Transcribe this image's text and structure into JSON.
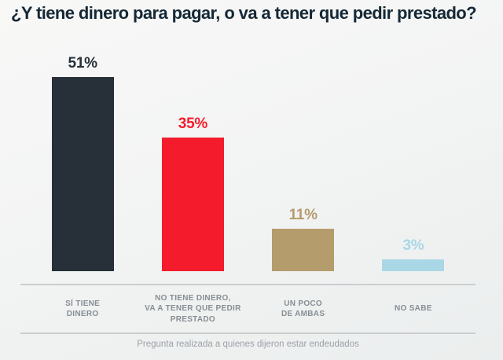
{
  "title": "¿Y tiene dinero para pagar, o va a tener que pedir prestado?",
  "footnote": "Pregunta realizada a quienes dijeron estar endeudados",
  "colors": {
    "title_text": "#152836",
    "category_label_text": "#878e93",
    "footnote_text": "#9ba1a6",
    "axis_line": "#cbcdce",
    "background": "#f3f4f4"
  },
  "chart_data": {
    "type": "bar",
    "title": "¿Y tiene dinero para pagar, o va a tener que pedir prestado?",
    "categories": [
      "SÍ TIENE DINERO",
      "NO TIENE DINERO, VA A TENER QUE PEDIR PRESTADO",
      "UN POCO DE AMBAS",
      "NO SABE"
    ],
    "category_label_lines": [
      [
        "SÍ TIENE",
        "DINERO"
      ],
      [
        "NO TIENE DINERO,",
        "VA A TENER QUE PEDIR",
        "PRESTADO"
      ],
      [
        "UN POCO",
        "DE AMBAS"
      ],
      [
        "NO SABE"
      ]
    ],
    "values": [
      51,
      35,
      11,
      3
    ],
    "value_labels": [
      "51%",
      "35%",
      "11%",
      "3%"
    ],
    "bar_colors": [
      "#273039",
      "#f41c2c",
      "#b59c6d",
      "#a9d7e6"
    ],
    "xlabel": "",
    "ylabel": "",
    "ylim": [
      0,
      55
    ],
    "grid": false,
    "legend": null,
    "annotation": "Pregunta realizada a quienes dijeron estar endeudados"
  }
}
